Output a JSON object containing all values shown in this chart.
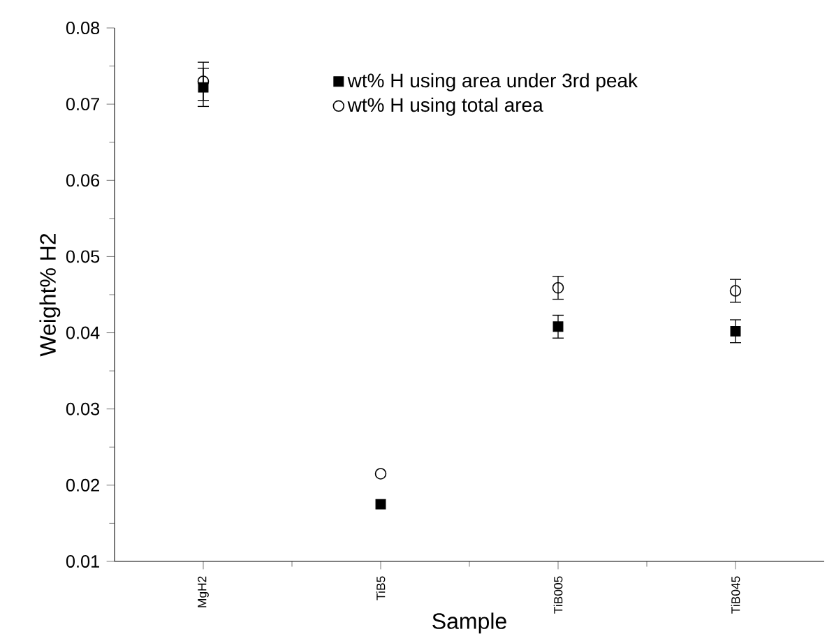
{
  "chart_data": {
    "type": "scatter",
    "xlabel": "Sample",
    "ylabel": "Weight% H2",
    "categories": [
      "MgH2",
      "TiB5",
      "TiB005",
      "TiB045"
    ],
    "series": [
      {
        "name": "wt% H using area under 3rd peak",
        "color": "#000000",
        "marker": "square",
        "values": [
          0.0722,
          0.0175,
          0.0408,
          0.0402
        ],
        "errors": [
          0.0025,
          null,
          0.0015,
          0.0015
        ]
      },
      {
        "name": "wt% H using total area",
        "color": "#000000",
        "marker": "circle",
        "values": [
          0.073,
          0.0215,
          0.0459,
          0.0455
        ],
        "errors": [
          0.0025,
          null,
          0.0015,
          0.0015
        ]
      }
    ],
    "ylim": [
      0.01,
      0.08
    ],
    "yticks": [
      0.01,
      0.02,
      0.03,
      0.04,
      0.05,
      0.06,
      0.07,
      0.08
    ],
    "legend": "top right"
  }
}
